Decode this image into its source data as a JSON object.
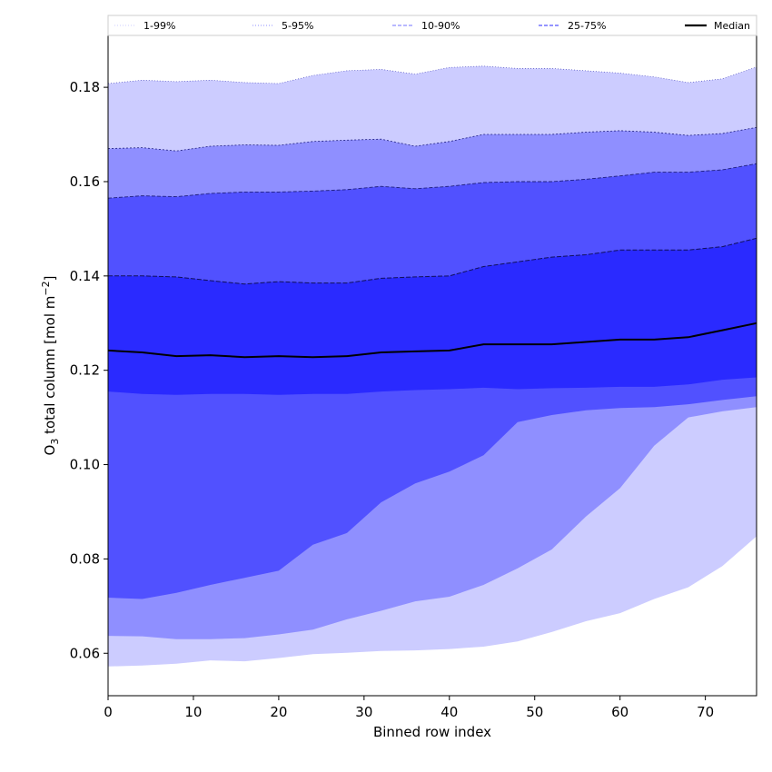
{
  "chart_data": {
    "type": "area",
    "xlabel": "Binned row index",
    "ylabel_prefix": "O",
    "ylabel_sub": "3",
    "ylabel_rest": " total column [mol m",
    "ylabel_sup": "−2",
    "ylabel_end": "]",
    "xlim": [
      0,
      76
    ],
    "ylim": [
      0.051,
      0.191
    ],
    "xticks": [
      0,
      10,
      20,
      30,
      40,
      50,
      60,
      70
    ],
    "xtick_labels": [
      "0",
      "10",
      "20",
      "30",
      "40",
      "50",
      "60",
      "70"
    ],
    "yticks": [
      0.06,
      0.08,
      0.1,
      0.12,
      0.14,
      0.16,
      0.18
    ],
    "ytick_labels": [
      "0.06",
      "0.08",
      "0.10",
      "0.12",
      "0.14",
      "0.16",
      "0.18"
    ],
    "legend": {
      "position": "top",
      "entries": [
        {
          "label": "1-99%",
          "color": "#ccccff",
          "style": "dotted"
        },
        {
          "label": "5-95%",
          "color": "#8f8fff",
          "style": "dotted"
        },
        {
          "label": "10-90%",
          "color": "#8f8fff",
          "style": "dashed"
        },
        {
          "label": "25-75%",
          "color": "#5555ff",
          "style": "dashed"
        },
        {
          "label": "Median",
          "color": "#000000",
          "style": "solid"
        }
      ]
    },
    "band_colors": [
      "#ccccff",
      "#8f8fff",
      "#5151ff",
      "#2a2aff"
    ],
    "x": [
      0,
      4,
      8,
      12,
      16,
      20,
      24,
      28,
      32,
      36,
      40,
      44,
      48,
      52,
      56,
      60,
      64,
      68,
      72,
      76
    ],
    "series": [
      {
        "name": "p1",
        "values": [
          0.0572,
          0.0574,
          0.0578,
          0.0585,
          0.0583,
          0.059,
          0.0598,
          0.0601,
          0.0605,
          0.0606,
          0.0609,
          0.0614,
          0.0625,
          0.0645,
          0.0668,
          0.0685,
          0.0715,
          0.074,
          0.0785,
          0.0848
        ]
      },
      {
        "name": "p5",
        "values": [
          0.0637,
          0.0636,
          0.063,
          0.063,
          0.0632,
          0.064,
          0.065,
          0.0672,
          0.069,
          0.071,
          0.072,
          0.0745,
          0.078,
          0.082,
          0.089,
          0.095,
          0.104,
          0.11,
          0.1113,
          0.1122
        ]
      },
      {
        "name": "p10",
        "values": [
          0.0718,
          0.0715,
          0.0728,
          0.0745,
          0.076,
          0.0775,
          0.083,
          0.0855,
          0.092,
          0.096,
          0.0985,
          0.102,
          0.109,
          0.1105,
          0.1115,
          0.112,
          0.1122,
          0.1128,
          0.1137,
          0.1145
        ]
      },
      {
        "name": "p25",
        "values": [
          0.1155,
          0.115,
          0.1148,
          0.115,
          0.115,
          0.1148,
          0.115,
          0.115,
          0.1155,
          0.1158,
          0.116,
          0.1163,
          0.116,
          0.1162,
          0.1163,
          0.1165,
          0.1165,
          0.117,
          0.118,
          0.1185
        ]
      },
      {
        "name": "Median",
        "values": [
          0.1242,
          0.1238,
          0.123,
          0.1232,
          0.1228,
          0.123,
          0.1228,
          0.123,
          0.1238,
          0.124,
          0.1242,
          0.1255,
          0.1255,
          0.1255,
          0.126,
          0.1265,
          0.1265,
          0.127,
          0.1285,
          0.13
        ]
      },
      {
        "name": "p75",
        "values": [
          0.14,
          0.14,
          0.1398,
          0.139,
          0.1383,
          0.1388,
          0.1385,
          0.1385,
          0.1395,
          0.1398,
          0.14,
          0.142,
          0.143,
          0.144,
          0.1445,
          0.1455,
          0.1455,
          0.1455,
          0.1462,
          0.148
        ]
      },
      {
        "name": "p90",
        "values": [
          0.1565,
          0.157,
          0.1568,
          0.1575,
          0.1578,
          0.1578,
          0.158,
          0.1583,
          0.159,
          0.1585,
          0.159,
          0.1598,
          0.16,
          0.16,
          0.1605,
          0.1612,
          0.162,
          0.162,
          0.1625,
          0.1638
        ]
      },
      {
        "name": "p95",
        "values": [
          0.167,
          0.1672,
          0.1665,
          0.1675,
          0.1678,
          0.1677,
          0.1685,
          0.1688,
          0.169,
          0.1675,
          0.1685,
          0.17,
          0.17,
          0.17,
          0.1705,
          0.1708,
          0.1705,
          0.1698,
          0.1702,
          0.1715
        ]
      },
      {
        "name": "p99",
        "values": [
          0.1808,
          0.1815,
          0.1812,
          0.1815,
          0.181,
          0.1808,
          0.1825,
          0.1835,
          0.1838,
          0.1828,
          0.1842,
          0.1845,
          0.184,
          0.184,
          0.1835,
          0.183,
          0.1822,
          0.181,
          0.1818,
          0.1843
        ]
      }
    ]
  }
}
